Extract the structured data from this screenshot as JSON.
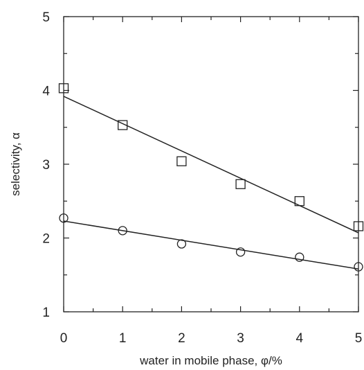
{
  "chart_data": {
    "type": "scatter",
    "title": "",
    "xlabel": "water in mobile phase, φ/%",
    "ylabel": "selectivity, α",
    "xlim": [
      0,
      5
    ],
    "ylim": [
      1,
      5
    ],
    "x_ticks": [
      "0",
      "1",
      "2",
      "3",
      "4",
      "5"
    ],
    "y_ticks": [
      "1",
      "2",
      "3",
      "4",
      "5"
    ],
    "grid": false,
    "legend": "none",
    "series": [
      {
        "marker": "square",
        "x": [
          0,
          1,
          2,
          3,
          4,
          5
        ],
        "y": [
          4.03,
          3.53,
          3.04,
          2.73,
          2.5,
          2.16
        ],
        "fit": {
          "x": [
            0,
            5
          ],
          "y": [
            3.92,
            2.07
          ]
        }
      },
      {
        "marker": "circle",
        "x": [
          0,
          1,
          2,
          3,
          4,
          5
        ],
        "y": [
          2.27,
          2.1,
          1.92,
          1.81,
          1.74,
          1.61
        ],
        "fit": {
          "x": [
            0,
            5
          ],
          "y": [
            2.23,
            1.58
          ]
        }
      }
    ]
  }
}
